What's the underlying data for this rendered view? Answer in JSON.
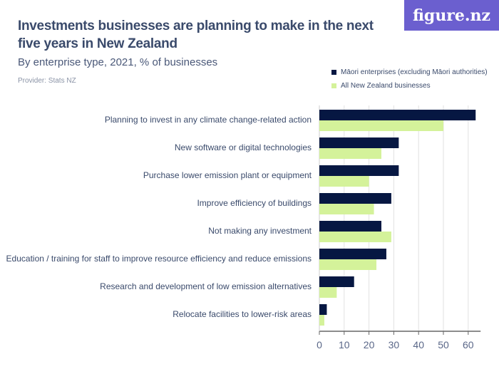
{
  "logo": "figure.nz",
  "chart_data": {
    "type": "bar",
    "orientation": "horizontal",
    "title": "Investments businesses are planning to make in the next five years in New Zealand",
    "subtitle": "By enterprise type, 2021, % of businesses",
    "provider": "Provider: Stats NZ",
    "categories": [
      "Planning to invest in any climate change-related action",
      "New software or digital technologies",
      "Purchase lower emission plant or equipment",
      "Improve efficiency of buildings",
      "Not making any investment",
      "Education / training for staff to improve resource efficiency and reduce emissions",
      "Research and development of low emission alternatives",
      "Relocate facilities to lower-risk areas"
    ],
    "series": [
      {
        "name": "Māori enterprises (excluding Māori authorities)",
        "color": "#061742",
        "values": [
          63,
          32,
          32,
          29,
          25,
          27,
          14,
          3
        ]
      },
      {
        "name": "All New Zealand businesses",
        "color": "#d4f29a",
        "values": [
          50,
          25,
          20,
          22,
          29,
          23,
          7,
          2
        ]
      }
    ],
    "xlim": [
      0,
      65
    ],
    "ticks": [
      0,
      10,
      20,
      30,
      40,
      50,
      60
    ],
    "grid": true,
    "legend": "top-right"
  }
}
